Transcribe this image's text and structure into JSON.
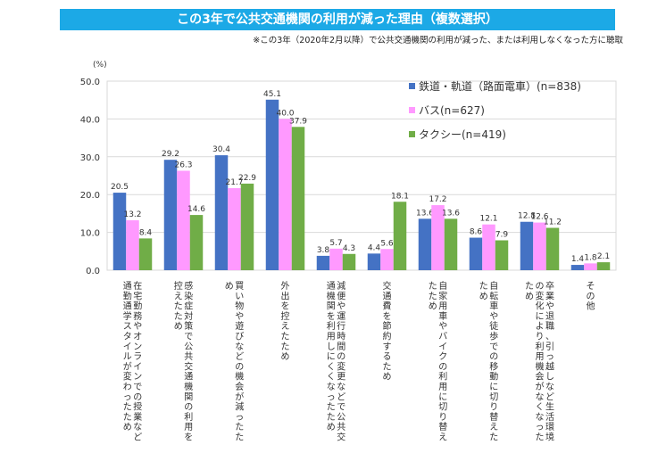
{
  "header": {
    "title": "この3年で公共交通機関の利用が減った理由（複数選択）",
    "note": "※この3年（2020年2月以降）で公共交通機関の利用が減った、または利用しなくなった方に聴取"
  },
  "colors": {
    "title_bg": "#1ca9e6",
    "series": [
      "#4472c4",
      "#ff99ff",
      "#70ad47"
    ]
  },
  "chart_data": {
    "type": "bar",
    "unit_label": "(%)",
    "ylim": [
      0,
      50
    ],
    "yticks": [
      "0.0",
      "10.0",
      "20.0",
      "30.0",
      "40.0",
      "50.0"
    ],
    "grid": true,
    "legend_position": "top-right",
    "categories": [
      "在宅勤務やオンラインでの授業など通勤通学スタイルが変わったため",
      "感染症対策で公共交通機関の利用を控えたため",
      "買い物や遊びなどの機会が減ったため",
      "外出を控えたため",
      "減便や運行時間の変更などで公共交通機関を利用しにくくなったため",
      "交通費を節約するため",
      "自家用車やバイクの利用に切り替えたため",
      "自転車や徒歩での移動に切り替えたため",
      "卒業や退職、引っ越しなど生活環境の変化により利用機会がなくなったため",
      "その他"
    ],
    "series": [
      {
        "name": "鉄道・軌道（路面電車）(n=838)",
        "values": [
          20.5,
          29.2,
          30.4,
          45.1,
          3.8,
          4.4,
          13.6,
          8.6,
          12.8,
          1.4
        ]
      },
      {
        "name": "バス(n=627)",
        "values": [
          13.2,
          26.3,
          21.7,
          40.0,
          5.7,
          5.6,
          17.2,
          12.1,
          12.6,
          1.8
        ]
      },
      {
        "name": "タクシー(n=419)",
        "values": [
          8.4,
          14.6,
          22.9,
          37.9,
          4.3,
          18.1,
          13.6,
          7.9,
          11.2,
          2.1
        ]
      }
    ]
  }
}
